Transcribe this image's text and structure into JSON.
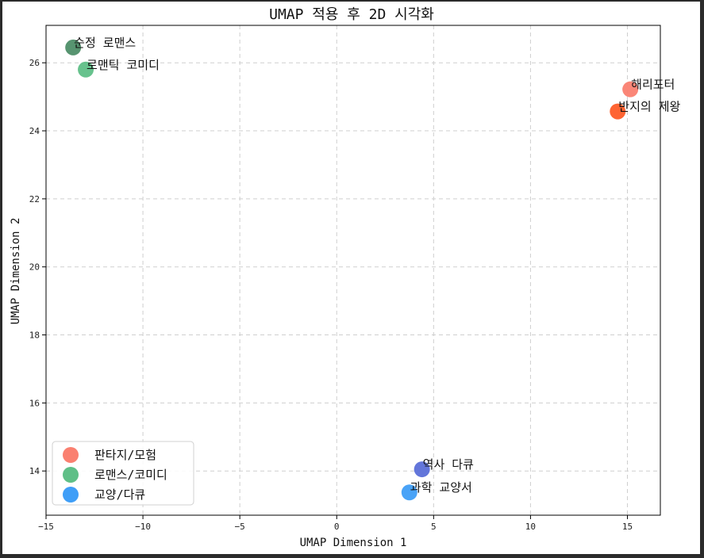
{
  "chart_data": {
    "type": "scatter",
    "title": "UMAP 적용 후 2D 시각화",
    "xlabel": "UMAP Dimension 1",
    "ylabel": "UMAP Dimension 2",
    "xlim": [
      -15,
      16.7
    ],
    "ylim": [
      12.7,
      27.1
    ],
    "xticks": [
      -15,
      -10,
      -5,
      0,
      5,
      10,
      15
    ],
    "yticks": [
      14,
      16,
      18,
      20,
      22,
      24,
      26
    ],
    "grid": true,
    "legend_position": "lower-left",
    "legend": [
      {
        "name": "판타지/모험",
        "color": "#fa8070"
      },
      {
        "name": "로맨스/코미디",
        "color": "#5fbf87"
      },
      {
        "name": "교양/다큐",
        "color": "#3f9ef7"
      }
    ],
    "points": [
      {
        "label": "해리포터",
        "x": 15.15,
        "y": 25.22,
        "color": "#fa8070",
        "group": "판타지/모험"
      },
      {
        "label": "반지의 제왕",
        "x": 14.5,
        "y": 24.57,
        "color": "#fe5c28",
        "group": "판타지/모험"
      },
      {
        "label": "순정 로맨스",
        "x": -13.6,
        "y": 26.45,
        "color": "#4e8e68",
        "group": "로맨스/코미디"
      },
      {
        "label": "로맨틱 코미디",
        "x": -12.95,
        "y": 25.8,
        "color": "#5fbf87",
        "group": "로맨스/코미디"
      },
      {
        "label": "역사 다큐",
        "x": 4.4,
        "y": 14.05,
        "color": "#5b6fd8",
        "group": "교양/다큐"
      },
      {
        "label": "과학 교양서",
        "x": 3.75,
        "y": 13.37,
        "color": "#3f9ef7",
        "group": "교양/다큐"
      }
    ]
  }
}
